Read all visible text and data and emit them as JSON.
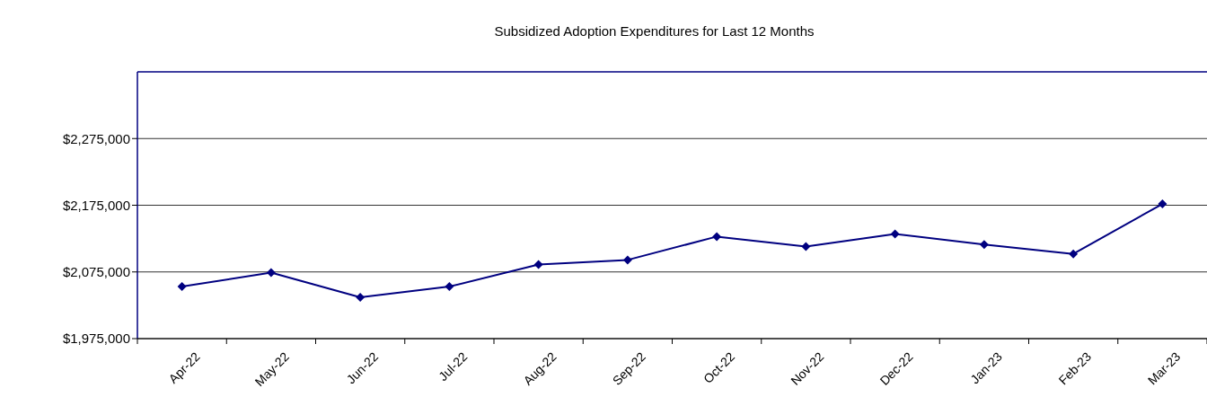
{
  "chart_data": {
    "type": "line",
    "title": "Subsidized Adoption Expenditures for Last 12 Months",
    "categories": [
      "Apr-22",
      "May-22",
      "Jun-22",
      "Jul-22",
      "Aug-22",
      "Sep-22",
      "Oct-22",
      "Nov-22",
      "Dec-22",
      "Jan-23",
      "Feb-23",
      "Mar-23"
    ],
    "series": [
      {
        "color": "#000080",
        "values": [
          2053000,
          2074000,
          2037000,
          2053000,
          2086000,
          2093000,
          2128000,
          2113000,
          2132000,
          2116000,
          2102000,
          2177000
        ]
      }
    ],
    "ylim": [
      1975000,
      2375000
    ],
    "yticks": [
      {
        "value": 1975000,
        "label": "$1,975,000"
      },
      {
        "value": 2075000,
        "label": "$2,075,000"
      },
      {
        "value": 2175000,
        "label": "$2,175,000"
      },
      {
        "value": 2275000,
        "label": "$2,275,000"
      }
    ],
    "grid": "y",
    "marker": "diamond",
    "line_style": "solid"
  }
}
